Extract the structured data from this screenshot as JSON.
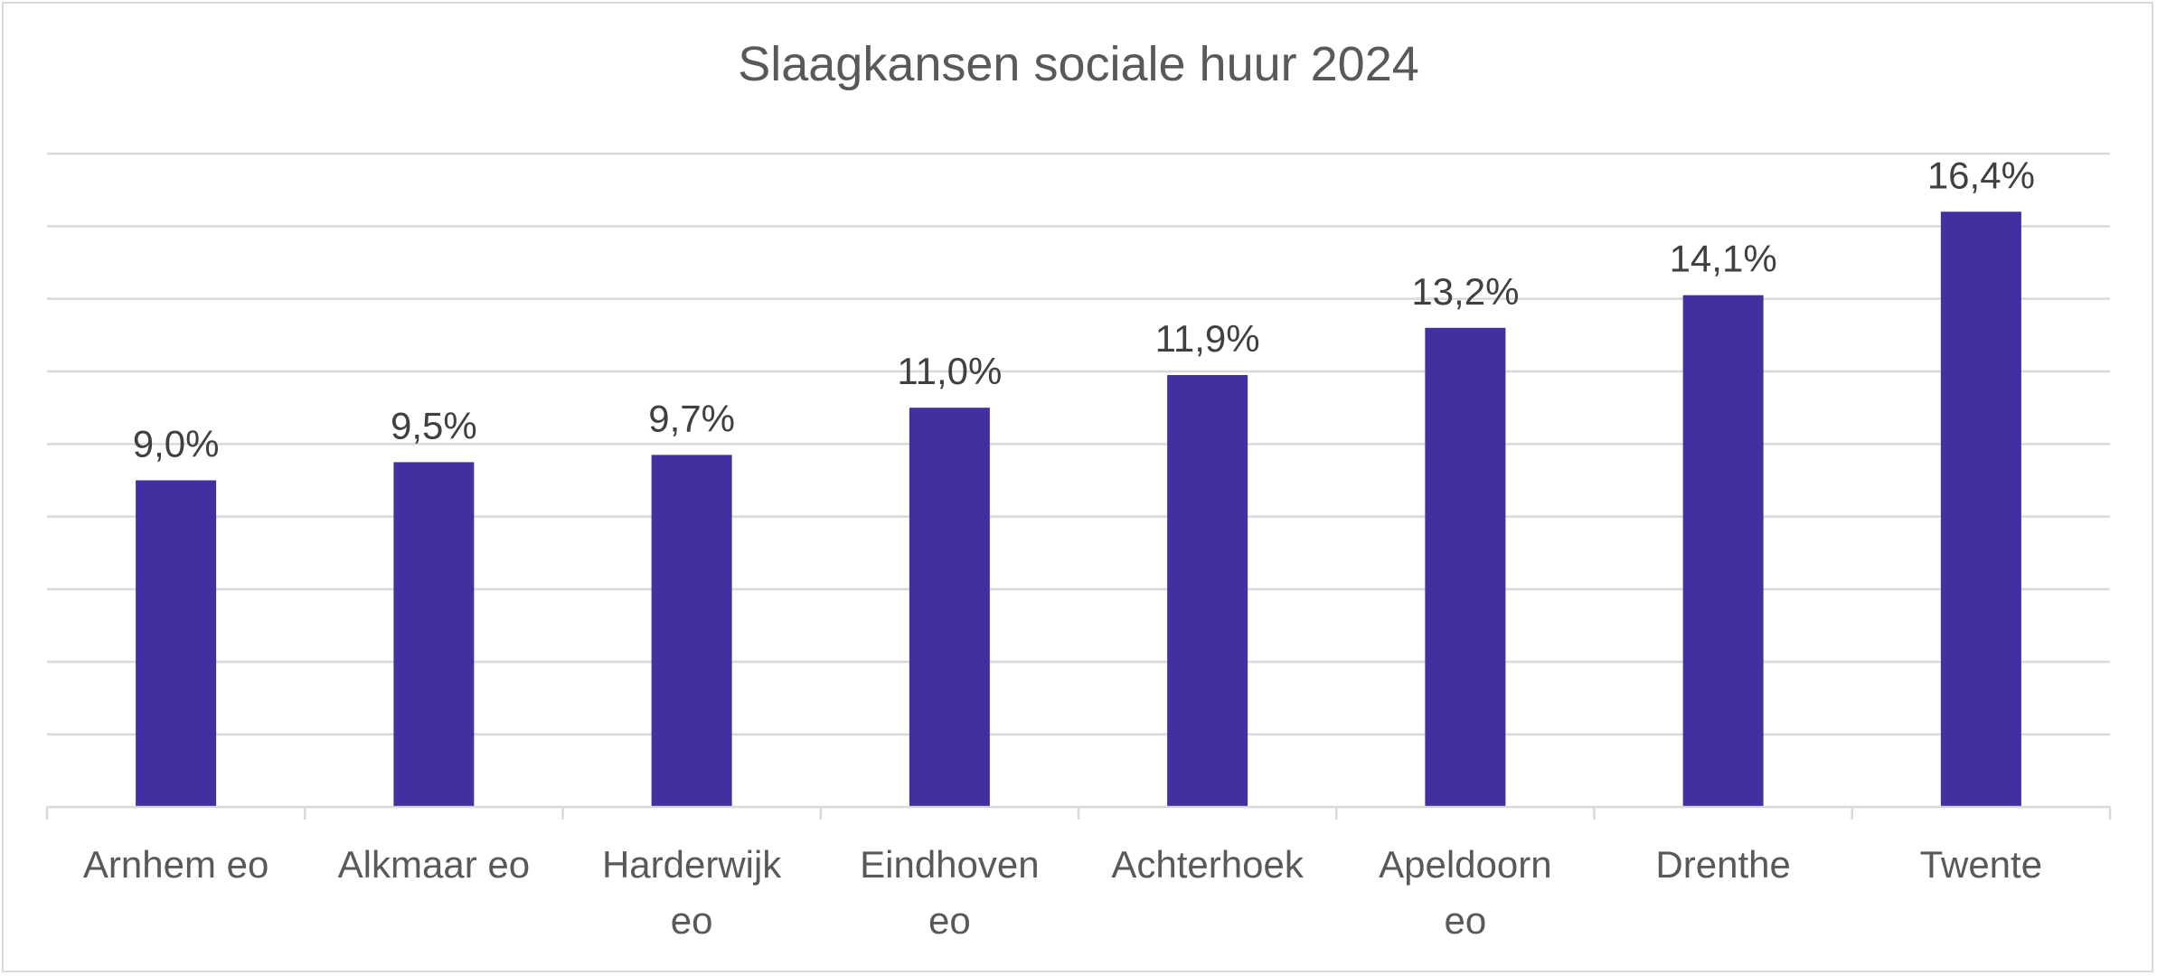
{
  "chart_data": {
    "type": "bar",
    "title": "Slaagkansen sociale huur 2024",
    "categories": [
      "Arnhem eo",
      "Alkmaar eo",
      "Harderwijk eo",
      "Eindhoven eo",
      "Achterhoek",
      "Apeldoorn eo",
      "Drenthe",
      "Twente"
    ],
    "category_lines": [
      [
        "Arnhem eo"
      ],
      [
        "Alkmaar eo"
      ],
      [
        "Harderwijk",
        "eo"
      ],
      [
        "Eindhoven",
        "eo"
      ],
      [
        "Achterhoek"
      ],
      [
        "Apeldoorn",
        "eo"
      ],
      [
        "Drenthe"
      ],
      [
        "Twente"
      ]
    ],
    "values": [
      9.0,
      9.5,
      9.7,
      11.0,
      11.9,
      13.2,
      14.1,
      16.4
    ],
    "data_labels": [
      "9,0%",
      "9,5%",
      "9,7%",
      "11,0%",
      "11,9%",
      "13,2%",
      "14,1%",
      "16,4%"
    ],
    "xlabel": "",
    "ylabel": "",
    "ylim": [
      0,
      18
    ],
    "grid_step": 2,
    "grid": true,
    "legend": "none",
    "bar_color": "#4130a0"
  }
}
